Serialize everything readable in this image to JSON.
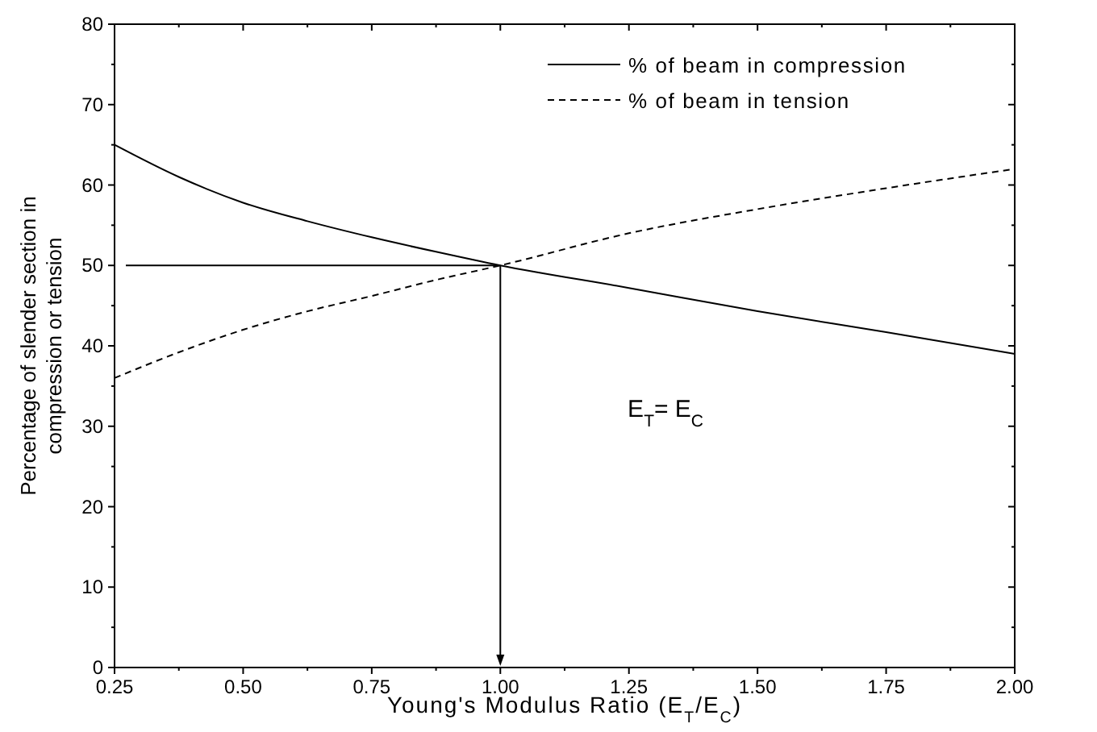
{
  "chart_data": {
    "type": "line",
    "xlabel": "Young's Modulus Ratio (E$_{T}$/E$_{C}$)",
    "ylabel": "Percentage of slender section in compression or tension",
    "x": [
      0.25,
      0.375,
      0.5,
      0.625,
      0.75,
      0.875,
      1.0,
      1.25,
      1.5,
      1.75,
      2.0
    ],
    "series": [
      {
        "name": "% of beam in compression",
        "color": "#000000",
        "line_style": "solid",
        "values": [
          65,
          61,
          57.8,
          55.5,
          53.5,
          51.7,
          50,
          47.2,
          44.3,
          41.7,
          39
        ]
      },
      {
        "name": "% of beam in tension",
        "color": "#000000",
        "line_style": "dashed",
        "values": [
          36,
          39.2,
          42,
          44.3,
          46.2,
          48.2,
          50,
          54,
          57,
          59.6,
          62
        ]
      }
    ],
    "xlim": [
      0.25,
      2.0
    ],
    "xticks": [
      {
        "value": 0.25,
        "label": "0.25"
      },
      {
        "value": 0.5,
        "label": "0.50"
      },
      {
        "value": 0.75,
        "label": "0.75"
      },
      {
        "value": 1.0,
        "label": "1.00"
      },
      {
        "value": 1.25,
        "label": "1.25"
      },
      {
        "value": 1.5,
        "label": "1.50"
      },
      {
        "value": 1.75,
        "label": "1.75"
      },
      {
        "value": 2.0,
        "label": "2.00"
      }
    ],
    "ylim": [
      0,
      80
    ],
    "yticks": [
      0,
      10,
      20,
      30,
      40,
      50,
      60,
      70,
      80
    ],
    "ref_lines": [
      {
        "axis": "y",
        "value": 50
      },
      {
        "axis": "x",
        "value": 1.0
      }
    ],
    "annotations": [
      "E$_{T}$= E$_{C}$"
    ],
    "legend": "top right",
    "grid": false
  }
}
